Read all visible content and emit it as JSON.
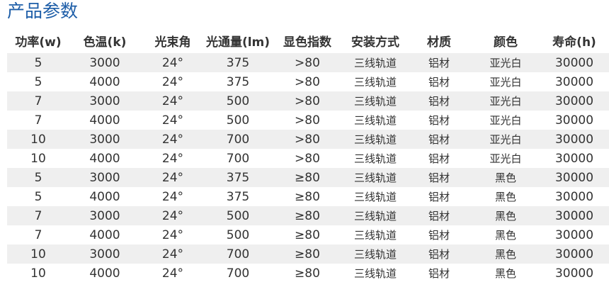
{
  "title": "产品参数",
  "headers": [
    "功率(w)",
    "色温(k)",
    "光束角",
    "光通量(lm)",
    "显色指数",
    "安装方式",
    "材质",
    "颜色",
    "寿命(h)"
  ],
  "rows": [
    [
      "5",
      "3000",
      "24°",
      "375",
      ">80",
      "三线轨道",
      "铝材",
      "亚光白",
      "30000"
    ],
    [
      "5",
      "4000",
      "24°",
      "375",
      ">80",
      "三线轨道",
      "铝材",
      "亚光白",
      "30000"
    ],
    [
      "7",
      "3000",
      "24°",
      "500",
      ">80",
      "三线轨道",
      "铝材",
      "亚光白",
      "30000"
    ],
    [
      "7",
      "4000",
      "24°",
      "500",
      ">80",
      "三线轨道",
      "铝材",
      "亚光白",
      "30000"
    ],
    [
      "10",
      "3000",
      "24°",
      "700",
      ">80",
      "三线轨道",
      "铝材",
      "亚光白",
      "30000"
    ],
    [
      "10",
      "4000",
      "24°",
      "700",
      ">80",
      "三线轨道",
      "铝材",
      "亚光白",
      "30000"
    ],
    [
      "5",
      "3000",
      "24°",
      "375",
      "≥80",
      "三线轨道",
      "铝材",
      "黑色",
      "30000"
    ],
    [
      "5",
      "4000",
      "24°",
      "375",
      "≥80",
      "三线轨道",
      "铝材",
      "黑色",
      "30000"
    ],
    [
      "7",
      "3000",
      "24°",
      "500",
      "≥80",
      "三线轨道",
      "铝材",
      "黑色",
      "30000"
    ],
    [
      "7",
      "4000",
      "24°",
      "500",
      "≥80",
      "三线轨道",
      "铝材",
      "黑色",
      "30000"
    ],
    [
      "10",
      "3000",
      "24°",
      "700",
      "≥80",
      "三线轨道",
      "铝材",
      "黑色",
      "30000"
    ],
    [
      "10",
      "4000",
      "24°",
      "700",
      "≥80",
      "三线轨道",
      "铝材",
      "黑色",
      "30000"
    ]
  ],
  "colors": {
    "title": "#1e5ea8",
    "stripe": "#efefef"
  }
}
